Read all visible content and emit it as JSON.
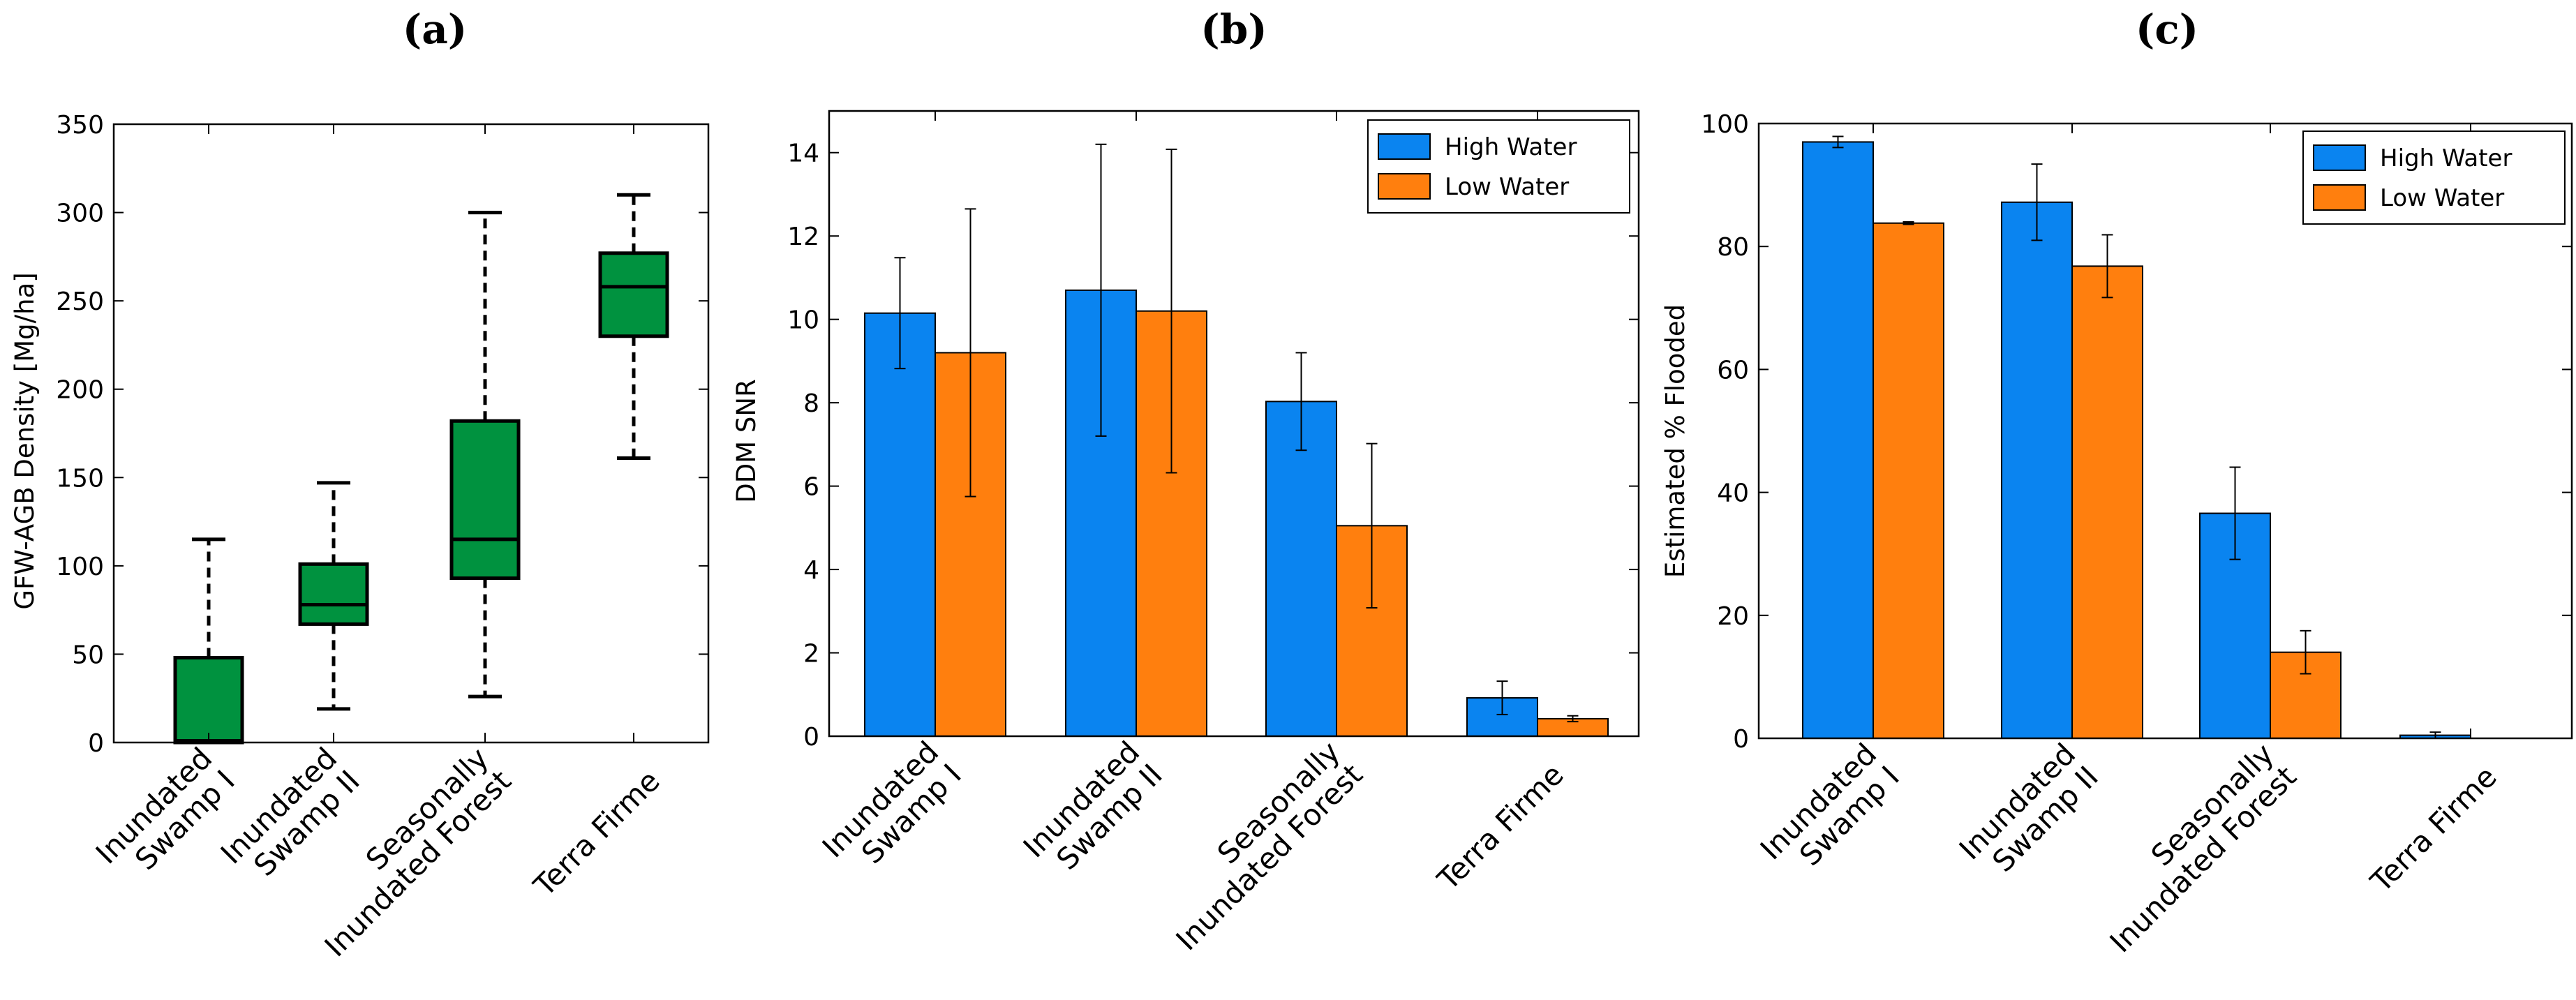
{
  "colors": {
    "box": "#00923f",
    "high": "#0a84f0",
    "low": "#ff7f0e",
    "axis": "#000000"
  },
  "chart_data": [
    {
      "panel": "(a)",
      "type": "box",
      "ylabel": "GFW-AGB Density [Mg/ha]",
      "ylim": [
        0,
        350
      ],
      "yticks": [
        "0",
        "50",
        "100",
        "150",
        "200",
        "250",
        "300",
        "350"
      ],
      "yticks_values": [
        0,
        50,
        100,
        150,
        200,
        250,
        300,
        350
      ],
      "categories": [
        [
          "Inundated",
          "Swamp I"
        ],
        [
          "Inundated",
          "Swamp II"
        ],
        [
          "Seasonally",
          "Inundated Forest"
        ],
        [
          "Terra Firme"
        ]
      ],
      "boxes": [
        {
          "whisker_low": 0,
          "q1": 0,
          "median": 1,
          "q3": 48,
          "whisker_high": 115
        },
        {
          "whisker_low": 19,
          "q1": 67,
          "median": 78,
          "q3": 101,
          "whisker_high": 147
        },
        {
          "whisker_low": 26,
          "q1": 93,
          "median": 115,
          "q3": 182,
          "whisker_high": 300
        },
        {
          "whisker_low": 161,
          "q1": 230,
          "median": 258,
          "q3": 277,
          "whisker_high": 310
        }
      ]
    },
    {
      "panel": "(b)",
      "type": "bar",
      "ylabel": "DDM SNR",
      "ylim": [
        0,
        15
      ],
      "yticks": [
        "0",
        "2",
        "4",
        "6",
        "8",
        "10",
        "12",
        "14"
      ],
      "yticks_values": [
        0,
        2,
        4,
        6,
        8,
        10,
        12,
        14
      ],
      "categories": [
        [
          "Inundated",
          "Swamp I"
        ],
        [
          "Inundated",
          "Swamp II"
        ],
        [
          "Seasonally",
          "Inundated Forest"
        ],
        [
          "Terra Firme"
        ]
      ],
      "legend": "top-right",
      "series": [
        {
          "name": "High Water",
          "values": [
            10.15,
            10.7,
            8.03,
            0.92
          ],
          "errors": [
            1.33,
            3.5,
            1.17,
            0.4
          ]
        },
        {
          "name": "Low Water",
          "values": [
            9.2,
            10.2,
            5.05,
            0.42
          ],
          "errors": [
            3.45,
            3.88,
            1.97,
            0.07
          ]
        }
      ]
    },
    {
      "panel": "(c)",
      "type": "bar",
      "ylabel": "Estimated % Flooded",
      "ylim": [
        0,
        100
      ],
      "yticks": [
        "0",
        "20",
        "40",
        "60",
        "80",
        "100"
      ],
      "yticks_values": [
        0,
        20,
        40,
        60,
        80,
        100
      ],
      "categories": [
        [
          "Inundated",
          "Swamp I"
        ],
        [
          "Inundated",
          "Swamp II"
        ],
        [
          "Seasonally",
          "Inundated Forest"
        ],
        [
          "Terra Firme"
        ]
      ],
      "legend": "top-right",
      "series": [
        {
          "name": "High Water",
          "values": [
            97,
            87.2,
            36.6,
            0.5
          ],
          "errors": [
            0.9,
            6.2,
            7.5,
            0.5
          ]
        },
        {
          "name": "Low Water",
          "values": [
            83.8,
            76.8,
            14,
            0
          ],
          "errors": [
            0.2,
            5.1,
            3.5,
            0
          ]
        }
      ]
    }
  ]
}
